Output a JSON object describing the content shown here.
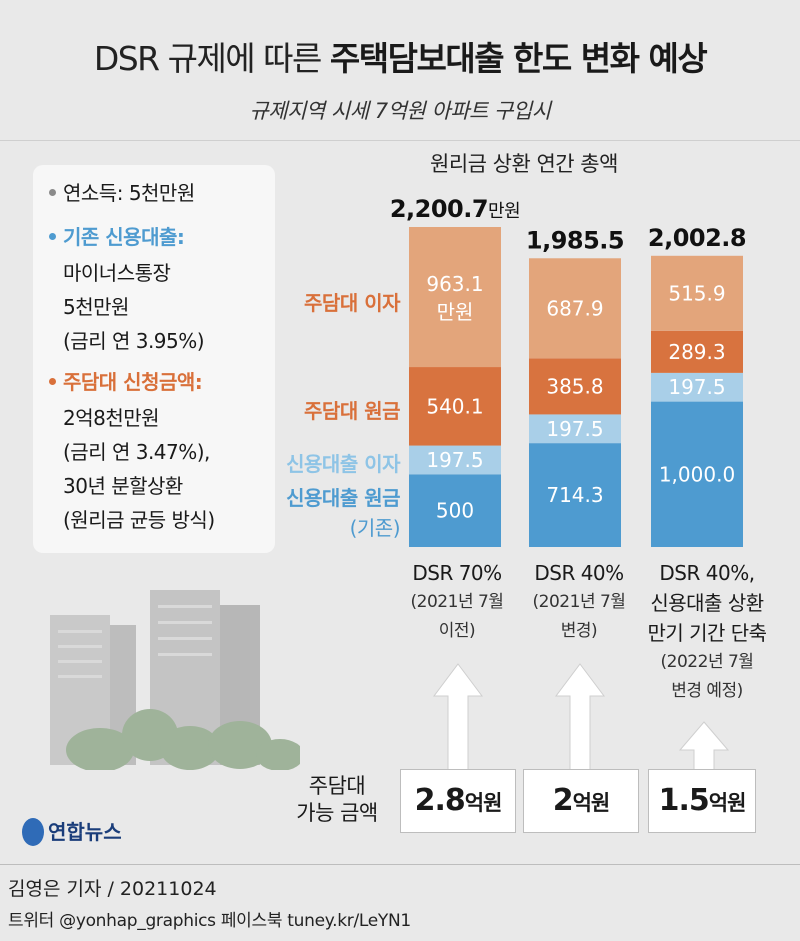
{
  "header": {
    "title_light": "DSR 규제에 따른",
    "title_bold": "주택담보대출 한도 변화 예상",
    "subtitle": "규제지역 시세 7억원 아파트 구입시"
  },
  "info_panel": {
    "income_label": "연소득:",
    "income_value": "5천만원",
    "credit_head": "기존 신용대출:",
    "credit_lines": [
      "마이너스통장",
      "5천만원",
      "(금리 연 3.95%)"
    ],
    "mortgage_head": "주담대 신청금액:",
    "mortgage_lines": [
      "2억8천만원",
      "(금리 연 3.47%),",
      "30년 분할상환",
      "(원리금 균등 방식)"
    ]
  },
  "colors": {
    "mortgage_interest": "#e3a57b",
    "mortgage_principal": "#d8733f",
    "credit_interest": "#a9cfe8",
    "credit_principal": "#4e9bd0",
    "text_orange": "#d9703a",
    "text_blue": "#4e9bd0",
    "text_light_blue": "#8ec4e6"
  },
  "chart_data": {
    "type": "bar",
    "stacked": true,
    "title": "원리금 상환 연간 총액",
    "unit": "만원",
    "categories": [
      "DSR 70%",
      "DSR 40%",
      "DSR 40%, 신용대출 상환 만기 기간 단축"
    ],
    "totals": [
      2200.7,
      1985.5,
      2002.8
    ],
    "total_labels": [
      "2,200.7",
      "1,985.5",
      "2,002.8"
    ],
    "total_unit_label": "만원",
    "series": [
      {
        "name": "신용대출 원금",
        "values": [
          500,
          714.3,
          1000.0
        ],
        "labels": [
          "500",
          "714.3",
          "1,000.0"
        ]
      },
      {
        "name": "신용대출 이자",
        "values": [
          197.5,
          197.5,
          197.5
        ],
        "labels": [
          "197.5",
          "197.5",
          "197.5"
        ]
      },
      {
        "name": "주담대 원금",
        "values": [
          540.1,
          385.8,
          289.3
        ],
        "labels": [
          "540.1",
          "385.8",
          "289.3"
        ]
      },
      {
        "name": "주담대 이자",
        "values": [
          963.1,
          687.9,
          515.9
        ],
        "labels": [
          "963.1",
          "687.9",
          "515.9"
        ]
      }
    ],
    "first_bar_interest_unit": "만원",
    "side_labels": {
      "mortgage_interest": "주담대 이자",
      "mortgage_principal": "주담대 원금",
      "credit_interest": "신용대출 이자",
      "credit_principal": "신용대출 원금",
      "credit_principal_note": "(기존)"
    }
  },
  "conditions": [
    {
      "main": [
        "DSR 70%"
      ],
      "sub": [
        "(2021년 7월",
        "이전)"
      ]
    },
    {
      "main": [
        "DSR 40%"
      ],
      "sub": [
        "(2021년 7월",
        "변경)"
      ]
    },
    {
      "main": [
        "DSR 40%,",
        "신용대출 상환",
        "만기 기간 단축"
      ],
      "sub": [
        "(2022년 7월",
        "변경 예정)"
      ]
    }
  ],
  "loan_capacity": {
    "label_line1": "주담대",
    "label_line2": "가능 금액",
    "amounts": [
      {
        "num": "2.8",
        "unit": "억원"
      },
      {
        "num": "2",
        "unit": "억원"
      },
      {
        "num": "1.5",
        "unit": "억원"
      }
    ]
  },
  "footer": {
    "logo_text": "연합뉴스",
    "byline": "김영은 기자 / 20211024",
    "social": "트위터 @yonhap_graphics  페이스북 tuney.kr/LeYN1"
  }
}
